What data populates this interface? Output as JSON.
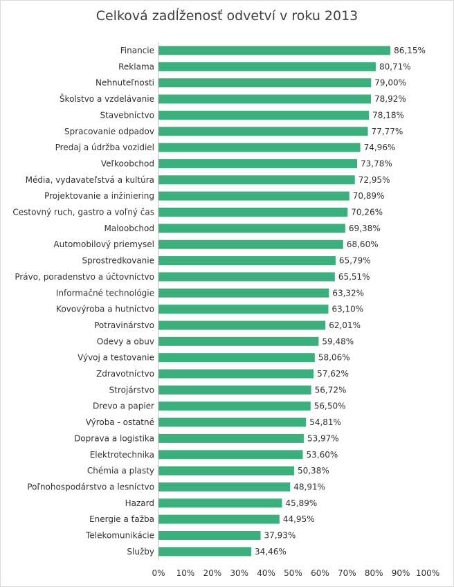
{
  "chart_data": {
    "type": "bar",
    "orientation": "horizontal",
    "title": "Celková zadĺženosť odvetví v roku 2013",
    "categories": [
      "Financie",
      "Reklama",
      "Nehnuteľnosti",
      "Školstvo a vzdelávanie",
      "Stavebníctvo",
      "Spracovanie odpadov",
      "Predaj a údržba vozidiel",
      "Veľkoobchod",
      "Média, vydavateľstvá a kultúra",
      "Projektovanie a inžiniering",
      "Cestovný ruch, gastro a voľný čas",
      "Maloobchod",
      "Automobilový priemysel",
      "Sprostredkovanie",
      "Právo, poradenstvo a účtovníctvo",
      "Informačné technológie",
      "Kovovýroba a hutníctvo",
      "Potravinárstvo",
      "Odevy a obuv",
      "Vývoj a testovanie",
      "Zdravotníctvo",
      "Strojárstvo",
      "Drevo a papier",
      "Výroba - ostatné",
      "Doprava a logistika",
      "Elektrotechnika",
      "Chémia a plasty",
      "Poľnohospodárstvo a lesníctvo",
      "Hazard",
      "Energie a ťažba",
      "Telekomunikácie",
      "Služby"
    ],
    "values": [
      86.15,
      80.71,
      79.0,
      78.92,
      78.18,
      77.77,
      74.96,
      73.78,
      72.95,
      70.89,
      70.26,
      69.38,
      68.6,
      65.79,
      65.51,
      63.32,
      63.1,
      62.01,
      59.48,
      58.06,
      57.62,
      56.72,
      56.5,
      54.81,
      53.97,
      53.6,
      50.38,
      48.91,
      45.89,
      44.95,
      37.93,
      34.46
    ],
    "data_labels": [
      "86,15%",
      "80,71%",
      "79,00%",
      "78,92%",
      "78,18%",
      "77,77%",
      "74,96%",
      "73,78%",
      "72,95%",
      "70,89%",
      "70,26%",
      "69,38%",
      "68,60%",
      "65,79%",
      "65,51%",
      "63,32%",
      "63,10%",
      "62,01%",
      "59,48%",
      "58,06%",
      "57,62%",
      "56,72%",
      "56,50%",
      "54,81%",
      "53,97%",
      "53,60%",
      "50,38%",
      "48,91%",
      "45,89%",
      "44,95%",
      "37,93%",
      "34,46%"
    ],
    "x_ticks": [
      "0%",
      "10%",
      "20%",
      "30%",
      "40%",
      "50%",
      "60%",
      "70%",
      "80%",
      "90%",
      "100%"
    ],
    "xlim": [
      0,
      100
    ],
    "grid": false,
    "bar_color": "#3cb07c"
  }
}
